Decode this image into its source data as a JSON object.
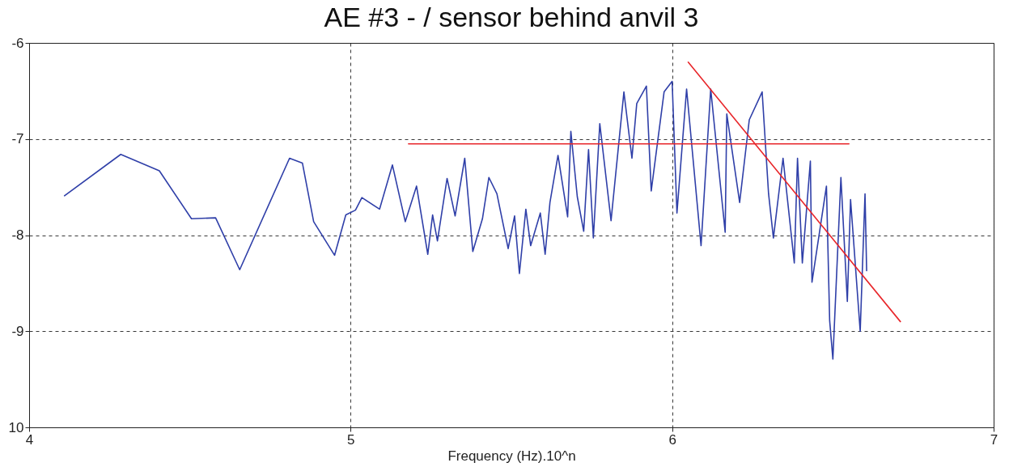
{
  "chart_data": {
    "type": "line",
    "title": "AE #3 - / sensor behind anvil 3",
    "xlabel": "Frequency (Hz).10^n",
    "xlim": [
      4,
      7
    ],
    "xticks": [
      4,
      5,
      6,
      7
    ],
    "ylim": [
      -10,
      -6
    ],
    "yticks": [
      {
        "value": -10,
        "label": "10"
      },
      -9,
      -8,
      -7,
      -6
    ],
    "grid": true,
    "line_style": "solid",
    "series": [
      {
        "color": "#2f3fa8",
        "x": [
          4.11,
          4.285,
          4.405,
          4.505,
          4.58,
          4.655,
          4.81,
          4.85,
          4.885,
          4.95,
          4.985,
          5.015,
          5.035,
          5.09,
          5.13,
          5.17,
          5.205,
          5.24,
          5.255,
          5.27,
          5.3,
          5.325,
          5.355,
          5.38,
          5.41,
          5.43,
          5.455,
          5.49,
          5.51,
          5.525,
          5.545,
          5.56,
          5.59,
          5.605,
          5.62,
          5.645,
          5.675,
          5.685,
          5.705,
          5.725,
          5.74,
          5.755,
          5.775,
          5.81,
          5.85,
          5.875,
          5.89,
          5.92,
          5.935,
          5.975,
          6.0,
          6.015,
          6.045,
          6.09,
          6.12,
          6.165,
          6.17,
          6.21,
          6.24,
          6.28,
          6.3,
          6.315,
          6.345,
          6.38,
          6.39,
          6.405,
          6.43,
          6.435,
          6.48,
          6.49,
          6.5,
          6.525,
          6.545,
          6.555,
          6.585,
          6.6,
          6.605
        ],
        "values": [
          -7.59,
          -7.16,
          -7.33,
          -7.83,
          -7.82,
          -8.36,
          -7.2,
          -7.25,
          -7.86,
          -8.21,
          -7.79,
          -7.74,
          -7.61,
          -7.73,
          -7.27,
          -7.86,
          -7.49,
          -8.2,
          -7.79,
          -8.06,
          -7.41,
          -7.8,
          -7.2,
          -8.17,
          -7.83,
          -7.4,
          -7.57,
          -8.14,
          -7.8,
          -8.4,
          -7.73,
          -8.11,
          -7.77,
          -8.2,
          -7.66,
          -7.17,
          -7.81,
          -6.92,
          -7.6,
          -7.96,
          -7.11,
          -8.03,
          -6.84,
          -7.85,
          -6.51,
          -7.2,
          -6.63,
          -6.45,
          -7.54,
          -6.51,
          -6.4,
          -7.77,
          -6.48,
          -8.11,
          -6.48,
          -7.97,
          -6.74,
          -7.66,
          -6.8,
          -6.51,
          -7.57,
          -8.03,
          -7.2,
          -8.29,
          -7.2,
          -8.29,
          -7.23,
          -8.49,
          -7.49,
          -8.89,
          -9.29,
          -7.4,
          -8.69,
          -7.63,
          -9.0,
          -7.57,
          -8.37
        ]
      },
      {
        "type": "line",
        "color": "#e8262a",
        "x": [
          5.18,
          6.55
        ],
        "values": [
          -7.05,
          -7.05
        ]
      },
      {
        "type": "line",
        "color": "#e8262a",
        "x": [
          6.05,
          6.71
        ],
        "values": [
          -6.2,
          -8.9
        ]
      }
    ]
  }
}
